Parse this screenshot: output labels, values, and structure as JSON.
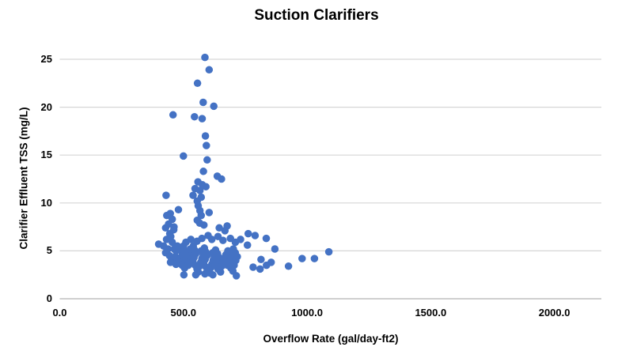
{
  "chart_data": {
    "type": "scatter",
    "title": "Suction Clarifiers",
    "xlabel": "Overflow Rate (gal/day-ft2)",
    "ylabel": "Clarifier Effluent TSS (mg/L)",
    "x_tick_labels": [
      "0.0",
      "500.0",
      "1000.0",
      "1500.0",
      "2000.0"
    ],
    "x_tick_values": [
      0,
      500,
      1000,
      1500,
      2000
    ],
    "y_tick_labels": [
      "0",
      "5",
      "10",
      "15",
      "20",
      "25"
    ],
    "y_tick_values": [
      0,
      5,
      10,
      15,
      20,
      25
    ],
    "xlim": [
      0,
      2190
    ],
    "ylim": [
      0,
      25
    ],
    "grid": "horizontal",
    "legend_position": "none",
    "marker_color": "#4472C4",
    "gridline_color": "#D6D6D6",
    "axisline_color": "#BFBFBF",
    "background_color": "#FFFFFF",
    "series": [
      {
        "name": "Suction Clarifiers",
        "points": [
          [
            587,
            25.2
          ],
          [
            604,
            23.9
          ],
          [
            557,
            22.5
          ],
          [
            580,
            20.5
          ],
          [
            623,
            20.1
          ],
          [
            458,
            19.2
          ],
          [
            545,
            19.0
          ],
          [
            576,
            18.8
          ],
          [
            589,
            17.0
          ],
          [
            593,
            16.0
          ],
          [
            500,
            14.9
          ],
          [
            596,
            14.5
          ],
          [
            581,
            13.3
          ],
          [
            637,
            12.8
          ],
          [
            654,
            12.5
          ],
          [
            559,
            12.2
          ],
          [
            577,
            11.9
          ],
          [
            591,
            11.7
          ],
          [
            547,
            11.5
          ],
          [
            567,
            11.3
          ],
          [
            430,
            10.8
          ],
          [
            539,
            10.8
          ],
          [
            572,
            10.6
          ],
          [
            556,
            10.2
          ],
          [
            560,
            9.7
          ],
          [
            480,
            9.3
          ],
          [
            567,
            9.2
          ],
          [
            604,
            9.0
          ],
          [
            447,
            8.9
          ],
          [
            433,
            8.7
          ],
          [
            572,
            8.7
          ],
          [
            455,
            8.3
          ],
          [
            556,
            8.2
          ],
          [
            566,
            7.9
          ],
          [
            440,
            7.8
          ],
          [
            583,
            7.7
          ],
          [
            462,
            7.5
          ],
          [
            428,
            7.4
          ],
          [
            645,
            7.4
          ],
          [
            677,
            7.6
          ],
          [
            668,
            7.1
          ],
          [
            461,
            7.2
          ],
          [
            400,
            5.7
          ],
          [
            420,
            5.5
          ],
          [
            432,
            6.2
          ],
          [
            445,
            6.8
          ],
          [
            449,
            6.5
          ],
          [
            455,
            5.9
          ],
          [
            438,
            5.2
          ],
          [
            428,
            4.8
          ],
          [
            444,
            4.5
          ],
          [
            452,
            4.2
          ],
          [
            460,
            4.0
          ],
          [
            468,
            4.4
          ],
          [
            470,
            5.0
          ],
          [
            476,
            5.5
          ],
          [
            463,
            5.2
          ],
          [
            448,
            3.8
          ],
          [
            470,
            3.6
          ],
          [
            483,
            3.9
          ],
          [
            490,
            4.3
          ],
          [
            495,
            4.8
          ],
          [
            487,
            5.2
          ],
          [
            500,
            5.5
          ],
          [
            505,
            5.0
          ],
          [
            498,
            4.5
          ],
          [
            510,
            4.2
          ],
          [
            515,
            4.6
          ],
          [
            508,
            3.9
          ],
          [
            495,
            3.5
          ],
          [
            505,
            3.2
          ],
          [
            502,
            2.5
          ],
          [
            520,
            3.5
          ],
          [
            525,
            3.9
          ],
          [
            530,
            4.3
          ],
          [
            535,
            4.8
          ],
          [
            528,
            5.2
          ],
          [
            540,
            5.5
          ],
          [
            545,
            5.1
          ],
          [
            550,
            4.7
          ],
          [
            543,
            4.3
          ],
          [
            538,
            3.9
          ],
          [
            548,
            3.5
          ],
          [
            555,
            3.1
          ],
          [
            560,
            2.8
          ],
          [
            550,
            2.5
          ],
          [
            565,
            3.4
          ],
          [
            570,
            3.8
          ],
          [
            575,
            4.2
          ],
          [
            580,
            4.6
          ],
          [
            572,
            5.0
          ],
          [
            585,
            5.3
          ],
          [
            590,
            4.9
          ],
          [
            595,
            4.5
          ],
          [
            588,
            4.1
          ],
          [
            582,
            3.7
          ],
          [
            592,
            3.3
          ],
          [
            598,
            2.9
          ],
          [
            587,
            2.6
          ],
          [
            605,
            2.7
          ],
          [
            610,
            3.2
          ],
          [
            615,
            3.6
          ],
          [
            620,
            4.0
          ],
          [
            625,
            4.4
          ],
          [
            618,
            4.8
          ],
          [
            630,
            5.1
          ],
          [
            638,
            4.7
          ],
          [
            645,
            4.3
          ],
          [
            635,
            3.9
          ],
          [
            628,
            3.5
          ],
          [
            640,
            3.1
          ],
          [
            650,
            2.8
          ],
          [
            619,
            2.5
          ],
          [
            655,
            3.4
          ],
          [
            660,
            3.8
          ],
          [
            665,
            4.2
          ],
          [
            672,
            4.6
          ],
          [
            680,
            5.0
          ],
          [
            688,
            4.6
          ],
          [
            695,
            4.3
          ],
          [
            685,
            3.9
          ],
          [
            678,
            3.5
          ],
          [
            692,
            3.2
          ],
          [
            700,
            2.9
          ],
          [
            714,
            2.4
          ],
          [
            705,
            3.5
          ],
          [
            712,
            4.0
          ],
          [
            718,
            4.4
          ],
          [
            710,
            4.8
          ],
          [
            702,
            5.2
          ],
          [
            530,
            6.2
          ],
          [
            510,
            5.9
          ],
          [
            555,
            6.0
          ],
          [
            575,
            6.3
          ],
          [
            600,
            6.6
          ],
          [
            615,
            6.2
          ],
          [
            640,
            6.5
          ],
          [
            660,
            6.1
          ],
          [
            690,
            6.3
          ],
          [
            710,
            5.9
          ],
          [
            731,
            6.2
          ],
          [
            762,
            6.8
          ],
          [
            790,
            6.6
          ],
          [
            835,
            6.3
          ],
          [
            759,
            5.6
          ],
          [
            870,
            5.2
          ],
          [
            814,
            4.1
          ],
          [
            855,
            3.8
          ],
          [
            782,
            3.3
          ],
          [
            810,
            3.1
          ],
          [
            836,
            3.5
          ],
          [
            925,
            3.4
          ],
          [
            980,
            4.2
          ],
          [
            1030,
            4.2
          ],
          [
            1088,
            4.9
          ]
        ]
      }
    ]
  }
}
